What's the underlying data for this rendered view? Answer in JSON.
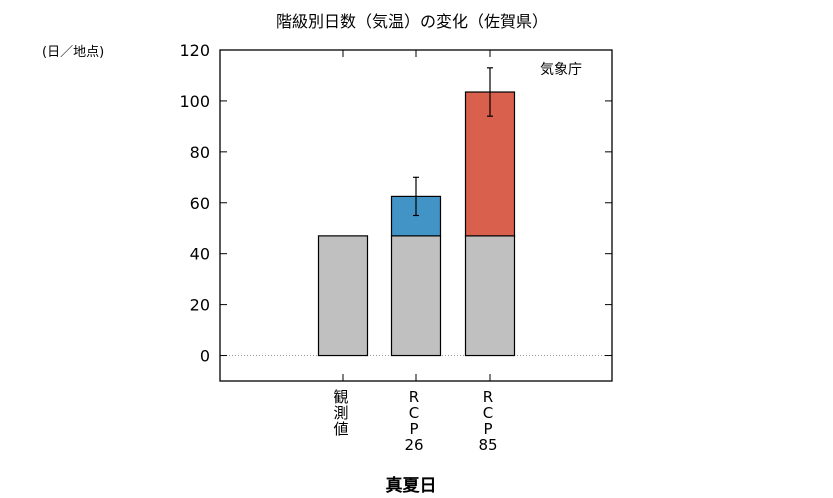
{
  "chart_data": {
    "type": "bar",
    "stacked": true,
    "title": "階級別日数（気温）の変化（佐賀県）",
    "ylabel": "(日／地点)",
    "xlabel": "真夏日",
    "source": "気象庁",
    "ylim": [
      -10,
      120
    ],
    "yticks": [
      0,
      20,
      40,
      60,
      80,
      100,
      120
    ],
    "grid": false,
    "categories": [
      [
        "観",
        "測",
        "値"
      ],
      [
        "R",
        "C",
        "P",
        "26"
      ],
      [
        "R",
        "C",
        "P",
        "85"
      ]
    ],
    "series": [
      {
        "values": [
          47,
          47,
          47
        ],
        "color": "#c0c0c0"
      },
      {
        "values": [
          0,
          15.5,
          56.5
        ],
        "color": "#4294c6",
        "color_rcp85": "#d9604c"
      }
    ],
    "totals": [
      47,
      62.5,
      103.5
    ],
    "error_bars": [
      null,
      [
        55,
        70
      ],
      [
        94,
        113
      ]
    ]
  }
}
